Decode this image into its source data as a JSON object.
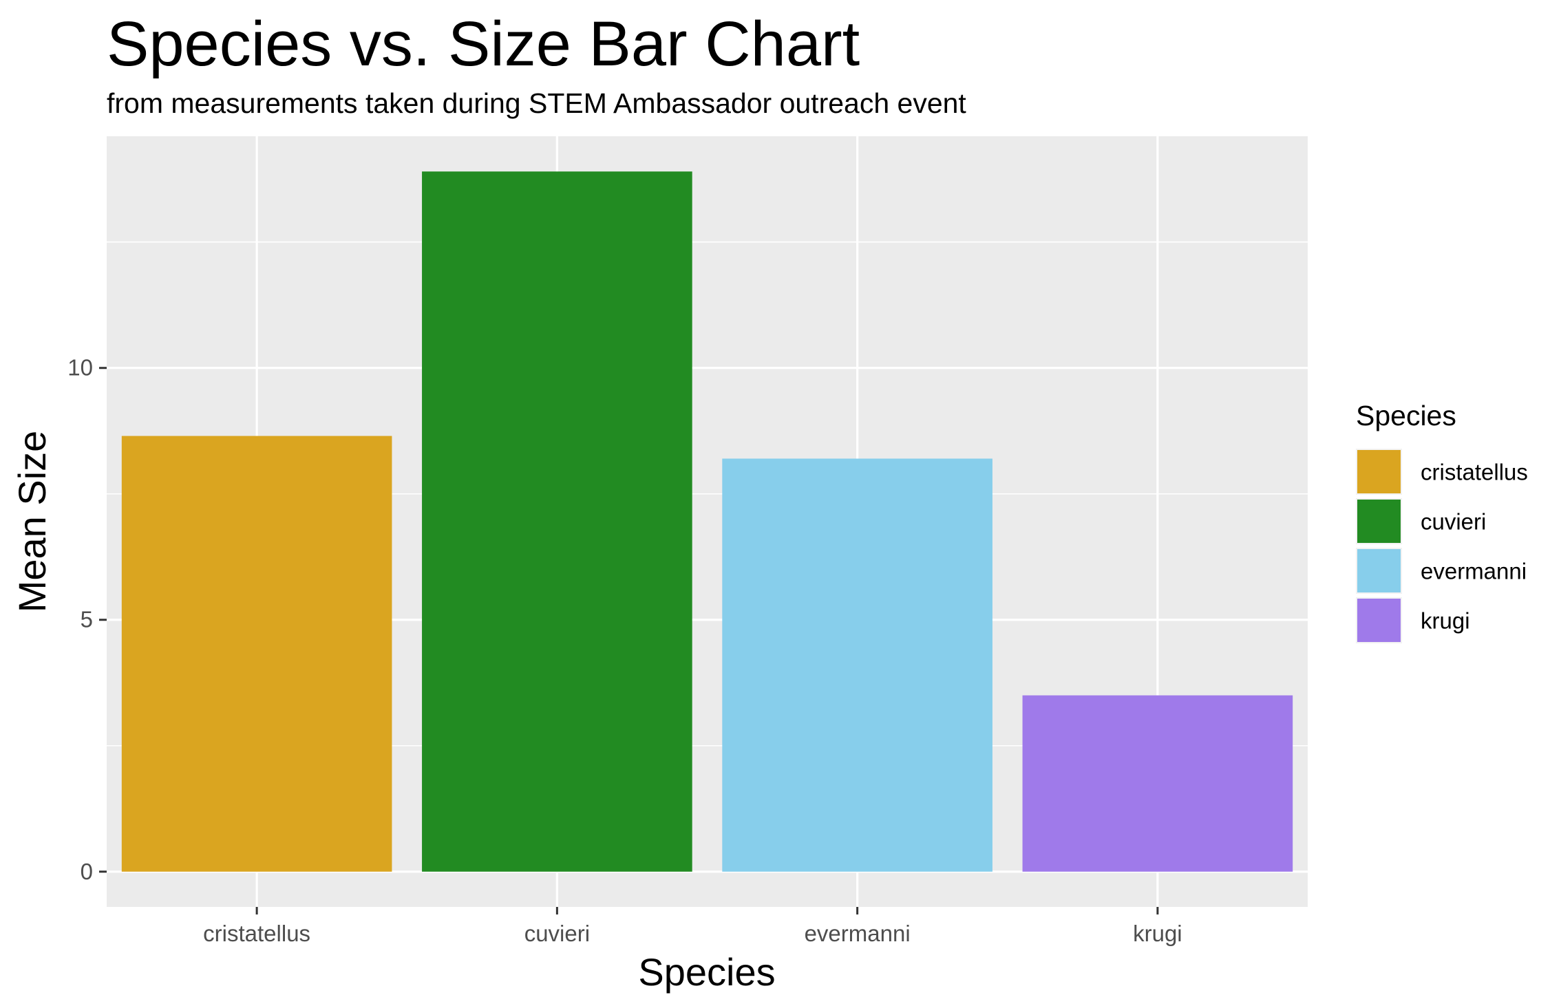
{
  "chart_data": {
    "type": "bar",
    "title": "Species vs. Size Bar Chart",
    "subtitle": "from measurements taken during STEM Ambassador outreach event",
    "xlabel": "Species",
    "ylabel": "Mean Size",
    "categories": [
      "cristatellus",
      "cuvieri",
      "evermanni",
      "krugi"
    ],
    "values": [
      8.65,
      13.9,
      8.2,
      3.5
    ],
    "colors": [
      "#DAA520",
      "#228B22",
      "#87CEEB",
      "#9F7AEA"
    ],
    "ylim": [
      -0.7,
      14.6
    ],
    "yticks": [
      0,
      5,
      10
    ],
    "yticks_minor": [
      2.5,
      7.5,
      12.5
    ],
    "grid": true,
    "panel_background": "#EBEBEB",
    "legend": {
      "title": "Species",
      "position": "right",
      "entries": [
        "cristatellus",
        "cuvieri",
        "evermanni",
        "krugi"
      ]
    }
  }
}
